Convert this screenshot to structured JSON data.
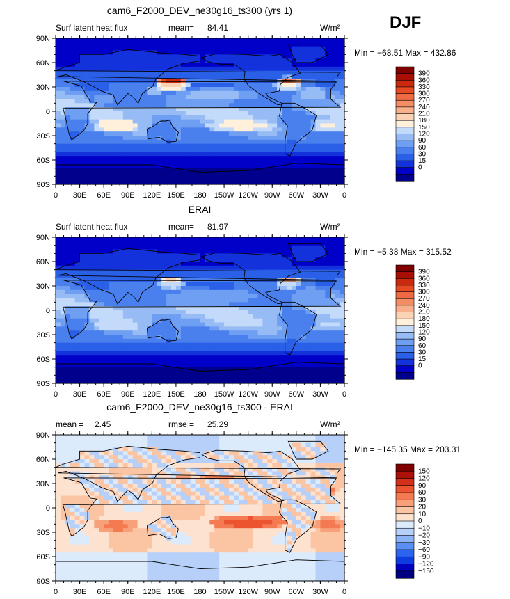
{
  "season_label": "DJF",
  "x_ticks": [
    "0",
    "30E",
    "60E",
    "90E",
    "120E",
    "150E",
    "180",
    "150W",
    "120W",
    "90W",
    "60W",
    "30W",
    "0"
  ],
  "y_ticks": [
    "90N",
    "60N",
    "30N",
    "0",
    "30S",
    "60S",
    "90S"
  ],
  "palette_abs": [
    "#00008c",
    "#0000c8",
    "#1432dc",
    "#2a5fe8",
    "#4a80ee",
    "#6e9ff2",
    "#97bcf5",
    "#c4dafa",
    "#fff0dc",
    "#fcd2b4",
    "#f8b08c",
    "#f48c64",
    "#ef6a42",
    "#e64a22",
    "#cc2a0e",
    "#a80e04",
    "#800000"
  ],
  "palette_diff": [
    "#000080",
    "#0000c0",
    "#0f3ce0",
    "#2b64ee",
    "#5a8ef2",
    "#8cb3f6",
    "#b6d0fa",
    "#dcebfc",
    "#fde2d0",
    "#fbc5a4",
    "#f8a07a",
    "#f47a52",
    "#ec5430",
    "#d2301a",
    "#ac1006",
    "#800000"
  ],
  "chart_data": [
    {
      "type": "heatmap",
      "title": "cam6_F2000_DEV_ne30g16_ts300 (yrs 1)",
      "left_label": "Surf latent heat flux",
      "stat_label": "mean=",
      "stat_value": "84.41",
      "units": "W/m²",
      "minmax": "Min = −68.51 Max = 432.86",
      "levels": [
        "390",
        "360",
        "330",
        "300",
        "270",
        "240",
        "210",
        "180",
        "150",
        "120",
        "90",
        "60",
        "30",
        "15",
        "0"
      ],
      "hotspots": [
        {
          "lon": 145,
          "lat": 33,
          "v": 0.97,
          "rx": 22,
          "ry": 9
        },
        {
          "lon": 290,
          "lat": 33,
          "v": 0.78,
          "rx": 18,
          "ry": 10
        },
        {
          "lon": 320,
          "lat": 22,
          "v": 0.6,
          "rx": 18,
          "ry": 9
        },
        {
          "lon": 200,
          "lat": 20,
          "v": 0.55,
          "rx": 55,
          "ry": 8
        },
        {
          "lon": 230,
          "lat": -18,
          "v": 0.5,
          "rx": 45,
          "ry": 8
        },
        {
          "lon": 75,
          "lat": -18,
          "v": 0.52,
          "rx": 30,
          "ry": 9
        },
        {
          "lon": 340,
          "lat": -18,
          "v": 0.48,
          "rx": 25,
          "ry": 9
        },
        {
          "lon": 60,
          "lat": 15,
          "v": 0.5,
          "rx": 12,
          "ry": 6
        },
        {
          "lon": 125,
          "lat": 25,
          "v": 0.62,
          "rx": 10,
          "ry": 6
        }
      ]
    },
    {
      "type": "heatmap",
      "title": "ERAI",
      "left_label": "Surf latent heat flux",
      "stat_label": "mean=",
      "stat_value": "81.97",
      "units": "W/m²",
      "minmax": "Min = −5.38 Max = 315.52",
      "levels": [
        "390",
        "360",
        "330",
        "300",
        "270",
        "240",
        "210",
        "180",
        "150",
        "120",
        "90",
        "60",
        "30",
        "15",
        "0"
      ],
      "hotspots": [
        {
          "lon": 145,
          "lat": 32,
          "v": 0.7,
          "rx": 18,
          "ry": 7
        },
        {
          "lon": 290,
          "lat": 33,
          "v": 0.72,
          "rx": 16,
          "ry": 8
        },
        {
          "lon": 200,
          "lat": 18,
          "v": 0.45,
          "rx": 55,
          "ry": 8
        },
        {
          "lon": 230,
          "lat": -16,
          "v": 0.42,
          "rx": 45,
          "ry": 8
        },
        {
          "lon": 75,
          "lat": -18,
          "v": 0.45,
          "rx": 30,
          "ry": 9
        },
        {
          "lon": 340,
          "lat": -18,
          "v": 0.42,
          "rx": 25,
          "ry": 9
        },
        {
          "lon": 320,
          "lat": 20,
          "v": 0.44,
          "rx": 18,
          "ry": 9
        }
      ]
    },
    {
      "type": "heatmap",
      "title": "cam6_F2000_DEV_ne30g16_ts300 - ERAI",
      "left_label": "mean =",
      "left_value": "2.45",
      "stat_label": "rmse =",
      "stat_value": "25.29",
      "units": "W/m²",
      "minmax": "Min = −145.35 Max = 203.31",
      "levels": [
        "150",
        "120",
        "90",
        "60",
        "30",
        "20",
        "10",
        "0",
        "−10",
        "−20",
        "−30",
        "−60",
        "−90",
        "−120",
        "−150"
      ],
      "hotspots": [
        {
          "lon": 160,
          "lat": 30,
          "v": 0.82,
          "rx": 30,
          "ry": 8
        },
        {
          "lon": 200,
          "lat": 32,
          "v": 0.78,
          "rx": 35,
          "ry": 7
        },
        {
          "lon": 240,
          "lat": -18,
          "v": 0.8,
          "rx": 50,
          "ry": 9
        },
        {
          "lon": 330,
          "lat": 22,
          "v": 0.8,
          "rx": 20,
          "ry": 8
        },
        {
          "lon": 75,
          "lat": -22,
          "v": 0.72,
          "rx": 28,
          "ry": 9
        },
        {
          "lon": 340,
          "lat": -20,
          "v": 0.72,
          "rx": 20,
          "ry": 9
        },
        {
          "lon": 85,
          "lat": 10,
          "v": 0.25,
          "rx": 15,
          "ry": 7
        },
        {
          "lon": 300,
          "lat": -5,
          "v": 0.22,
          "rx": 10,
          "ry": 8
        },
        {
          "lon": 125,
          "lat": 28,
          "v": 0.85,
          "rx": 8,
          "ry": 6
        },
        {
          "lon": 190,
          "lat": 5,
          "v": 0.3,
          "rx": 30,
          "ry": 4
        }
      ]
    }
  ]
}
